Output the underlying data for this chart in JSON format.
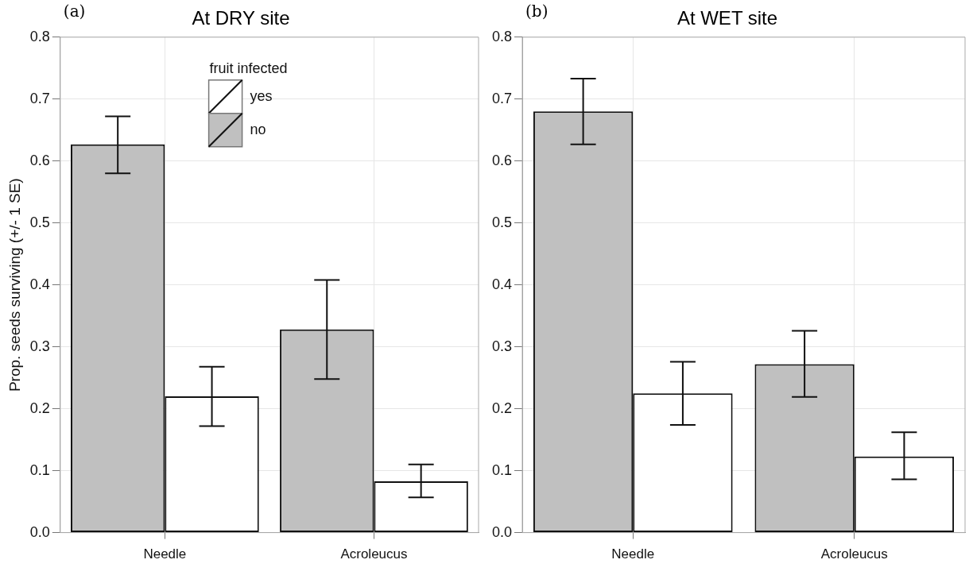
{
  "chart_data": [
    {
      "type": "bar",
      "title": "At DRY site",
      "ylabel": "Prop. seeds surviving (+/- 1 SE)",
      "annotations": [
        "(a)"
      ],
      "legend_title": "fruit infected",
      "legend": "top",
      "grid": true,
      "categories": [
        "Needle",
        "Acroleucus"
      ],
      "ylim": [
        0,
        0.8
      ],
      "yticks": [
        {
          "value": 0,
          "label": "0.0"
        },
        {
          "value": 0.1,
          "label": "0.1"
        },
        {
          "value": 0.2,
          "label": "0.2"
        },
        {
          "value": 0.3,
          "label": "0.3"
        },
        {
          "value": 0.4,
          "label": "0.4"
        },
        {
          "value": 0.5,
          "label": "0.5"
        },
        {
          "value": 0.6,
          "label": "0.6"
        },
        {
          "value": 0.7,
          "label": "0.7"
        },
        {
          "value": 0.8,
          "label": "0.8"
        }
      ],
      "series": [
        {
          "name": "no",
          "color": "#c0c0c0",
          "values": [
            0.627,
            0.328
          ],
          "errors": [
            [
              0.58,
              0.672
            ],
            [
              0.248,
              0.408
            ]
          ]
        },
        {
          "name": "yes",
          "color": "#ffffff",
          "values": [
            0.22,
            0.083
          ],
          "errors": [
            [
              0.172,
              0.268
            ],
            [
              0.057,
              0.11
            ]
          ]
        }
      ]
    },
    {
      "type": "bar",
      "title": "At WET site",
      "annotations": [
        "(b)"
      ],
      "grid": true,
      "categories": [
        "Needle",
        "Acroleucus"
      ],
      "ylim": [
        0,
        0.8
      ],
      "yticks": [
        {
          "value": 0,
          "label": "0.0"
        },
        {
          "value": 0.1,
          "label": "0.1"
        },
        {
          "value": 0.2,
          "label": "0.2"
        },
        {
          "value": 0.3,
          "label": "0.3"
        },
        {
          "value": 0.4,
          "label": "0.4"
        },
        {
          "value": 0.5,
          "label": "0.5"
        },
        {
          "value": 0.6,
          "label": "0.6"
        },
        {
          "value": 0.7,
          "label": "0.7"
        },
        {
          "value": 0.8,
          "label": "0.8"
        }
      ],
      "series": [
        {
          "color": "#c0c0c0",
          "values": [
            0.68,
            0.272
          ],
          "errors": [
            [
              0.627,
              0.733
            ],
            [
              0.219,
              0.326
            ]
          ]
        },
        {
          "color": "#ffffff",
          "values": [
            0.225,
            0.123
          ],
          "errors": [
            [
              0.174,
              0.276
            ],
            [
              0.086,
              0.162
            ]
          ]
        }
      ]
    }
  ]
}
